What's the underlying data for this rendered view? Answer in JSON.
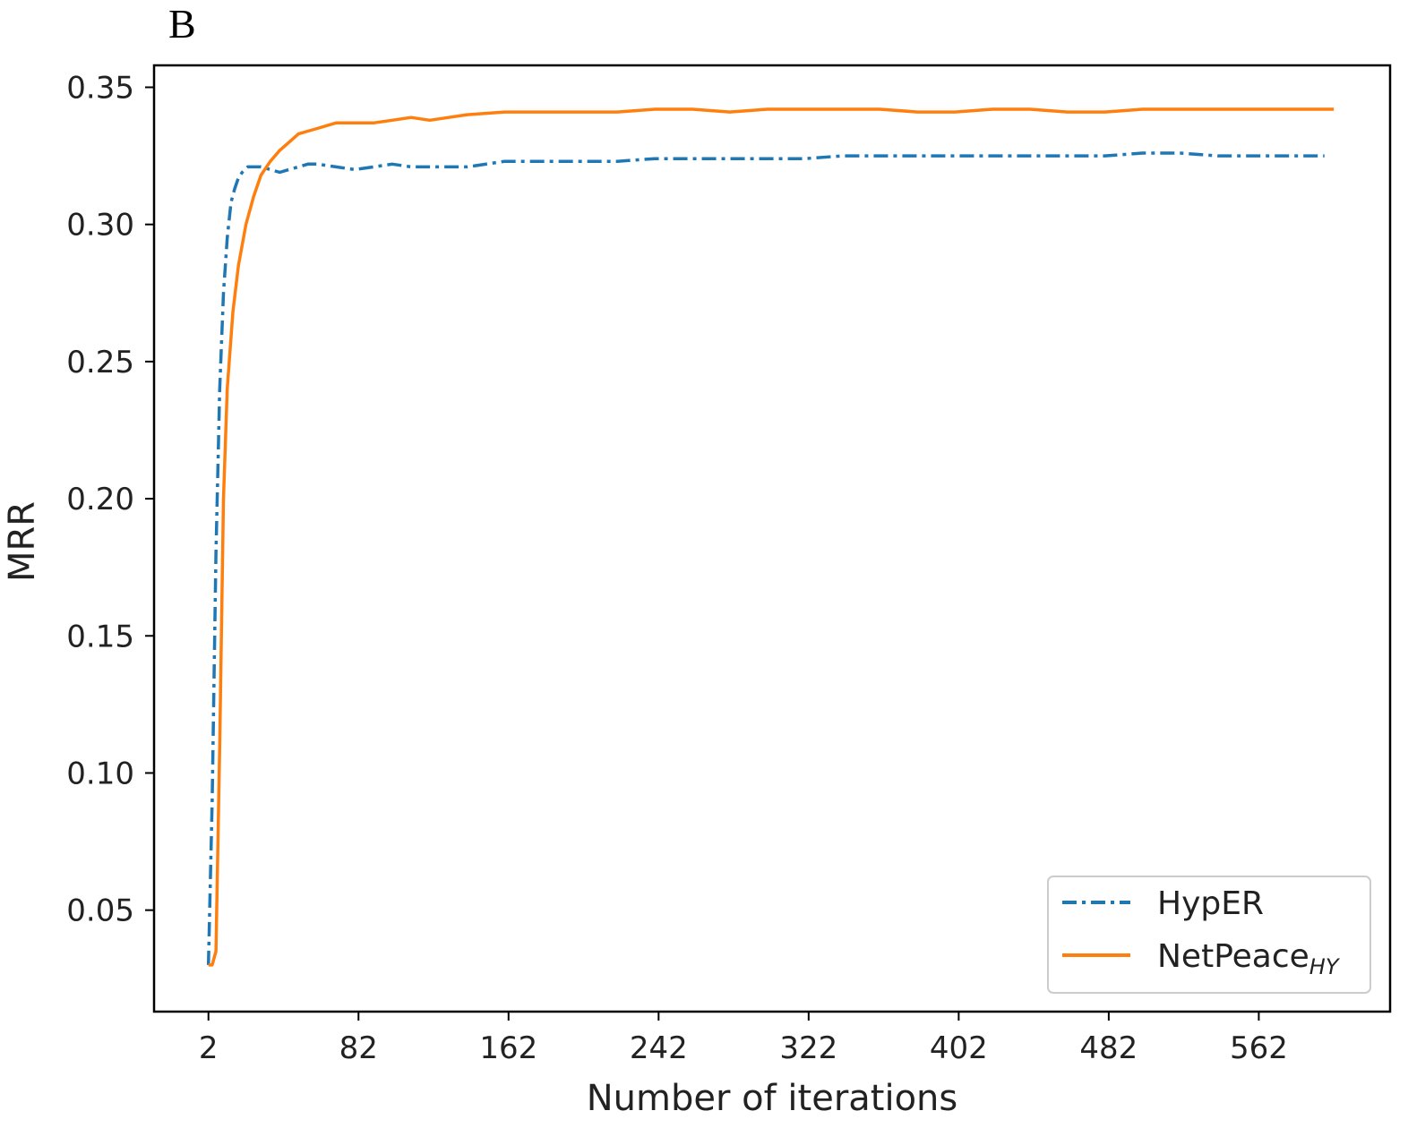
{
  "panel_label": "B",
  "chart_data": {
    "type": "line",
    "xlabel": "Number of iterations",
    "ylabel": "MRR",
    "x_ticks": [
      2,
      82,
      162,
      242,
      322,
      402,
      482,
      562
    ],
    "y_ticks": [
      "0.05",
      "0.10",
      "0.15",
      "0.20",
      "0.25",
      "0.30",
      "0.35"
    ],
    "xlim": [
      -27,
      632
    ],
    "ylim": [
      0.013,
      0.358
    ],
    "grid": false,
    "legend_position": "lower-right",
    "series": [
      {
        "name": "HypER",
        "legend_main": "HypER",
        "color": "#1f77b4",
        "style": "dashdot",
        "x": [
          2,
          4,
          6,
          8,
          10,
          12,
          14,
          16,
          18,
          20,
          23,
          26,
          30,
          35,
          40,
          45,
          50,
          55,
          60,
          70,
          80,
          90,
          100,
          110,
          120,
          140,
          160,
          180,
          200,
          220,
          240,
          260,
          280,
          300,
          320,
          340,
          360,
          380,
          400,
          420,
          440,
          460,
          480,
          500,
          520,
          540,
          560,
          580,
          597
        ],
        "y": [
          0.03,
          0.09,
          0.18,
          0.24,
          0.275,
          0.295,
          0.308,
          0.313,
          0.317,
          0.319,
          0.321,
          0.321,
          0.321,
          0.32,
          0.319,
          0.32,
          0.321,
          0.322,
          0.322,
          0.321,
          0.32,
          0.321,
          0.322,
          0.321,
          0.321,
          0.321,
          0.323,
          0.323,
          0.323,
          0.323,
          0.324,
          0.324,
          0.324,
          0.324,
          0.324,
          0.325,
          0.325,
          0.325,
          0.325,
          0.325,
          0.325,
          0.325,
          0.325,
          0.326,
          0.326,
          0.325,
          0.325,
          0.325,
          0.325
        ]
      },
      {
        "name": "NetPeaceHY",
        "legend_main": "NetPeace",
        "legend_sub": "HY",
        "color": "#ff7f0e",
        "style": "solid",
        "x": [
          2,
          4,
          6,
          8,
          10,
          12,
          15,
          18,
          22,
          26,
          30,
          35,
          40,
          45,
          50,
          55,
          60,
          70,
          80,
          90,
          100,
          110,
          120,
          140,
          160,
          180,
          200,
          220,
          240,
          260,
          280,
          300,
          320,
          340,
          360,
          380,
          400,
          420,
          440,
          460,
          480,
          500,
          520,
          540,
          560,
          580,
          602
        ],
        "y": [
          0.03,
          0.03,
          0.035,
          0.11,
          0.2,
          0.24,
          0.268,
          0.285,
          0.3,
          0.31,
          0.318,
          0.323,
          0.327,
          0.33,
          0.333,
          0.334,
          0.335,
          0.337,
          0.337,
          0.337,
          0.338,
          0.339,
          0.338,
          0.34,
          0.341,
          0.341,
          0.341,
          0.341,
          0.342,
          0.342,
          0.341,
          0.342,
          0.342,
          0.342,
          0.342,
          0.341,
          0.341,
          0.342,
          0.342,
          0.341,
          0.341,
          0.342,
          0.342,
          0.342,
          0.342,
          0.342,
          0.342
        ]
      }
    ]
  }
}
